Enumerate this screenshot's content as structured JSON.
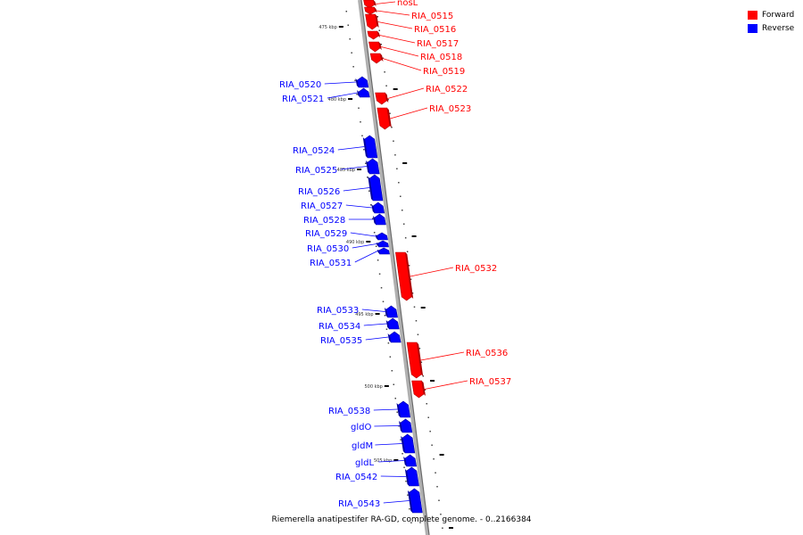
{
  "colors": {
    "forward": "#ff0000",
    "reverse": "#0000ff",
    "axis": "#888888"
  },
  "legend": {
    "forward_label": "Forward",
    "reverse_label": "Reverse"
  },
  "caption": "Riemerella anatipestifer RA-GD, complete genome. - 0..2166384",
  "scale_labels": [
    "475 kbp",
    "480 kbp",
    "485 kbp",
    "490 kbp",
    "495 kbp",
    "500 kbp",
    "505 kbp"
  ],
  "genes": [
    {
      "name": "nosL",
      "strand": "forward"
    },
    {
      "name": "RIA_0515",
      "strand": "forward"
    },
    {
      "name": "RIA_0516",
      "strand": "forward"
    },
    {
      "name": "RIA_0517",
      "strand": "forward"
    },
    {
      "name": "RIA_0518",
      "strand": "forward"
    },
    {
      "name": "RIA_0519",
      "strand": "forward"
    },
    {
      "name": "RIA_0520",
      "strand": "reverse"
    },
    {
      "name": "RIA_0521",
      "strand": "reverse"
    },
    {
      "name": "RIA_0522",
      "strand": "forward"
    },
    {
      "name": "RIA_0523",
      "strand": "forward"
    },
    {
      "name": "RIA_0524",
      "strand": "reverse"
    },
    {
      "name": "RIA_0525",
      "strand": "reverse"
    },
    {
      "name": "RIA_0526",
      "strand": "reverse"
    },
    {
      "name": "RIA_0527",
      "strand": "reverse"
    },
    {
      "name": "RIA_0528",
      "strand": "reverse"
    },
    {
      "name": "RIA_0529",
      "strand": "reverse"
    },
    {
      "name": "RIA_0530",
      "strand": "reverse"
    },
    {
      "name": "RIA_0531",
      "strand": "reverse"
    },
    {
      "name": "RIA_0532",
      "strand": "forward"
    },
    {
      "name": "RIA_0533",
      "strand": "reverse"
    },
    {
      "name": "RIA_0534",
      "strand": "reverse"
    },
    {
      "name": "RIA_0535",
      "strand": "reverse"
    },
    {
      "name": "RIA_0536",
      "strand": "forward"
    },
    {
      "name": "RIA_0537",
      "strand": "forward"
    },
    {
      "name": "RIA_0538",
      "strand": "reverse"
    },
    {
      "name": "gldO",
      "strand": "reverse"
    },
    {
      "name": "gldM",
      "strand": "reverse"
    },
    {
      "name": "gldL",
      "strand": "reverse"
    },
    {
      "name": "RIA_0542",
      "strand": "reverse"
    },
    {
      "name": "RIA_0543",
      "strand": "reverse"
    }
  ]
}
